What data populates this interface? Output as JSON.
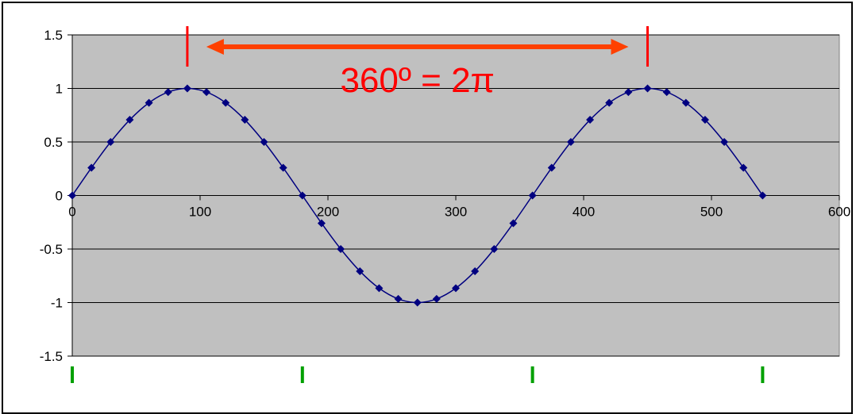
{
  "chart_data": {
    "type": "line",
    "title": "",
    "xlabel": "",
    "ylabel": "",
    "xlim": [
      0,
      600
    ],
    "ylim": [
      -1.5,
      1.5
    ],
    "x_ticks": [
      0,
      100,
      200,
      300,
      400,
      500,
      600
    ],
    "y_ticks": [
      1.5,
      1,
      0.5,
      0,
      -0.5,
      -1,
      -1.5
    ],
    "grid": "horizontal",
    "plot_background": "#C0C0C0",
    "series": [
      {
        "color": "#000080",
        "marker": "diamond",
        "x": [
          0,
          15,
          30,
          45,
          60,
          75,
          90,
          105,
          120,
          135,
          150,
          165,
          180,
          195,
          210,
          225,
          240,
          255,
          270,
          285,
          300,
          315,
          330,
          345,
          360,
          375,
          390,
          405,
          420,
          435,
          450,
          465,
          480,
          495,
          510,
          525,
          540
        ],
        "values": [
          0,
          0.259,
          0.5,
          0.707,
          0.866,
          0.966,
          1,
          0.966,
          0.866,
          0.707,
          0.5,
          0.259,
          0,
          -0.259,
          -0.5,
          -0.707,
          -0.866,
          -0.966,
          -1,
          -0.966,
          -0.866,
          -0.707,
          -0.5,
          -0.259,
          0,
          0.259,
          0.5,
          0.707,
          0.866,
          0.966,
          1,
          0.966,
          0.866,
          0.707,
          0.5,
          0.259,
          0
        ]
      }
    ],
    "annotations": [
      {
        "text": "360º = 2π",
        "color": "#FF0000",
        "arrow_color": "#FF4000",
        "period_markers_x": [
          90,
          450
        ]
      }
    ],
    "bottom_marks_color": "#00A000"
  }
}
